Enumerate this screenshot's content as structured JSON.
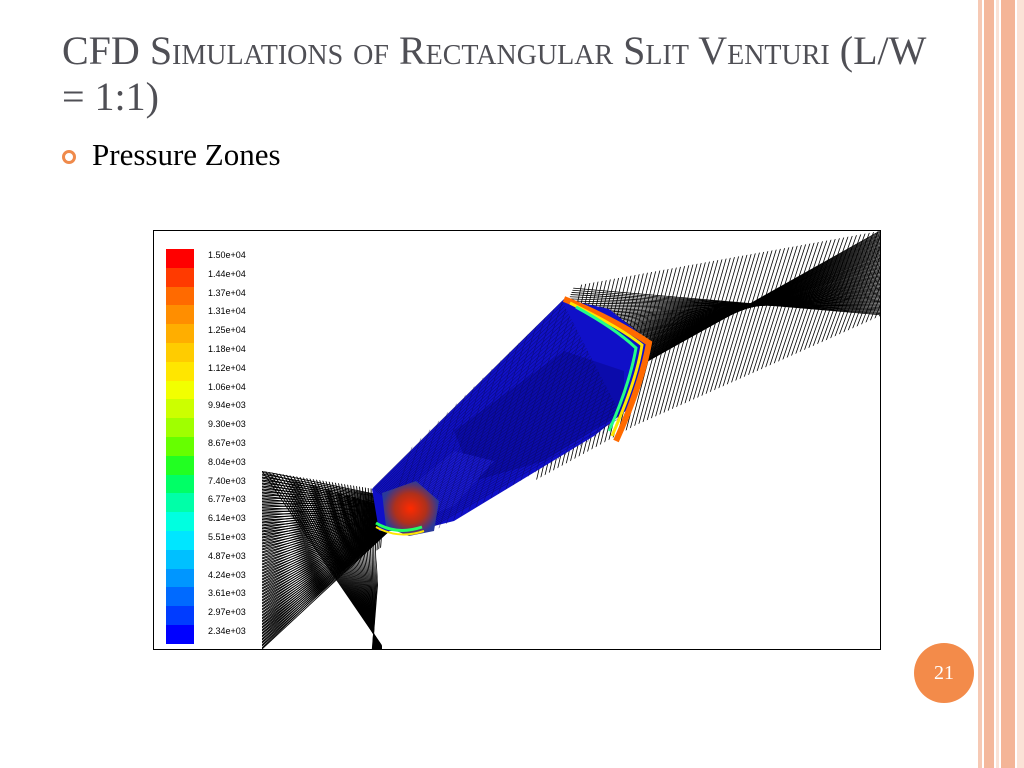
{
  "slide": {
    "title": "CFD Simulations of Rectangular Slit Venturi (L/W = 1:1)",
    "bullet": "Pressure Zones",
    "page_number": "21",
    "accent_color": "#f38b4a",
    "title_color": "#4f4f55"
  },
  "figure": {
    "legend": [
      {
        "label": "1.50e+04",
        "color": "#ff0000"
      },
      {
        "label": "1.44e+04",
        "color": "#ff3a00"
      },
      {
        "label": "1.37e+04",
        "color": "#ff6a00"
      },
      {
        "label": "1.31e+04",
        "color": "#ff8e00"
      },
      {
        "label": "1.25e+04",
        "color": "#ffae00"
      },
      {
        "label": "1.18e+04",
        "color": "#ffcc00"
      },
      {
        "label": "1.12e+04",
        "color": "#ffe600"
      },
      {
        "label": "1.06e+04",
        "color": "#f2ff00"
      },
      {
        "label": "9.94e+03",
        "color": "#ccff00"
      },
      {
        "label": "9.30e+03",
        "color": "#a0ff00"
      },
      {
        "label": "8.67e+03",
        "color": "#66ff00"
      },
      {
        "label": "8.04e+03",
        "color": "#22ff22"
      },
      {
        "label": "7.40e+03",
        "color": "#00ff66"
      },
      {
        "label": "6.77e+03",
        "color": "#00ffa8"
      },
      {
        "label": "6.14e+03",
        "color": "#00ffe0"
      },
      {
        "label": "5.51e+03",
        "color": "#00e6ff"
      },
      {
        "label": "4.87e+03",
        "color": "#00c0ff"
      },
      {
        "label": "4.24e+03",
        "color": "#0096ff"
      },
      {
        "label": "3.61e+03",
        "color": "#006aff"
      },
      {
        "label": "2.97e+03",
        "color": "#003cff"
      },
      {
        "label": "2.34e+03",
        "color": "#0000ff"
      }
    ]
  }
}
